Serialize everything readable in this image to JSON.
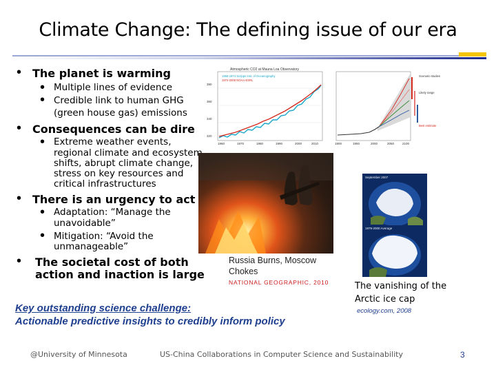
{
  "title": "Climate Change: The defining issue of our era",
  "bullets": {
    "b1": "The planet is warming",
    "b1_s1": "Multiple lines of evidence",
    "b1_s2_l1": "Credible link to human GHG",
    "b1_s2_l2": "(green house gas) emissions",
    "b2": "Consequences can be dire",
    "b2_s1_l1": "Extreme weather events,",
    "b2_s1_l2": "regional climate and ecosystem",
    "b2_s1_l3": "shifts, abrupt climate change,",
    "b2_s1_l4": "stress on key resources and",
    "b2_s1_l5": "critical infrastructures",
    "b3": "There is an urgency to act",
    "b3_s1_l1": "Adaptation: “Manage the",
    "b3_s1_l2": "unavoidable”",
    "b3_s2_l1": "Mitigation: “Avoid the",
    "b3_s2_l2": "unmanageable”",
    "b4_l1": "The societal cost of both",
    "b4_l2": "action and inaction is large"
  },
  "co2_chart": {
    "title": "Atmospheric CO2 at Mauna Loa Observatory",
    "legend1": "1958-1974 Scripps Inst. of Oceanography",
    "legend2": "1974-2008 NOAA-ESRL",
    "x_ticks": [
      "1960",
      "1970",
      "1980",
      "1990",
      "2000",
      "2010"
    ],
    "y_ticks": [
      "380",
      "360",
      "340",
      "320"
    ]
  },
  "temp_chart": {
    "x_ticks": [
      "1900",
      "1950",
      "2000",
      "2050",
      "2100"
    ],
    "note1": "Scenario studies",
    "note2": "Likely range",
    "note3": "Best estimate"
  },
  "fire_caption_l1": "Russia Burns, Moscow",
  "fire_caption_l2": "Chokes",
  "fire_source": "NATIONAL GEOGRAPHIC, 2010",
  "arctic": {
    "label_top": "September 2007",
    "label_mid": "1979-2000 Average",
    "caption_l1": "The vanishing of the",
    "caption_l2": "Arctic ice cap",
    "source": "ecology.com, 2008"
  },
  "key_l1": "Key outstanding science challenge:",
  "key_l2": "Actionable predictive insights to credibly inform policy",
  "footer_left": "@University of Minnesota",
  "footer_center": "US-China Collaborations in Computer Science and Sustainability",
  "page_number": "3"
}
